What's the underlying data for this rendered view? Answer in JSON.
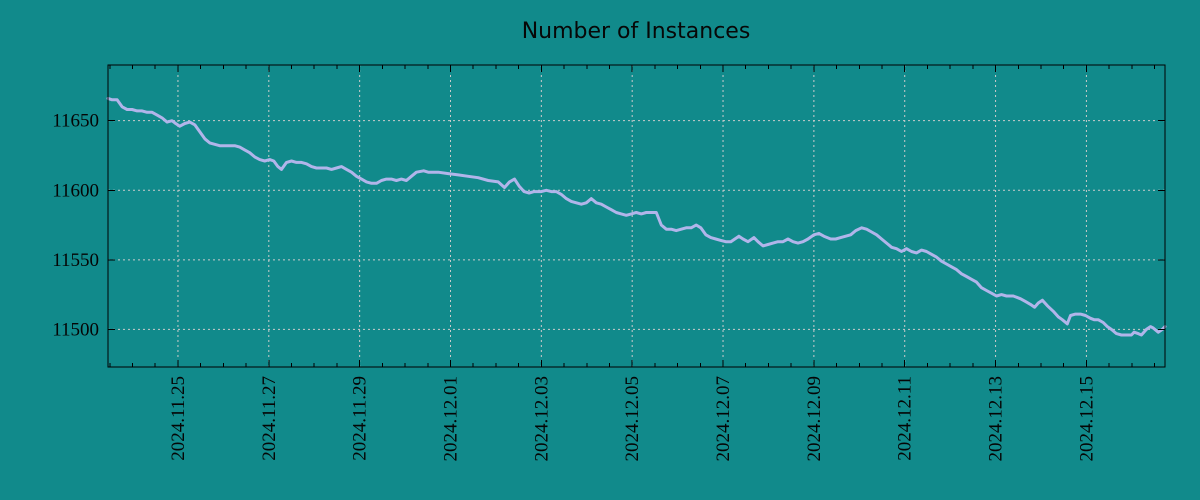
{
  "colors": {
    "background": "#118a8b",
    "line": "#b1b5ea",
    "grid": "#cccccc",
    "axis": "#000000",
    "text": "#070707"
  },
  "chart_data": {
    "type": "line",
    "title": "Number of Instances",
    "xlabel": "",
    "ylabel": "",
    "legend": "none",
    "grid": "dotted gridlines at labeled major ticks, ticks mirrored on all four borders",
    "x_axis": {
      "kind": "datetime",
      "unit_note": "day 0 = left plot edge (~1.5 days before 2024.11.25); labels every 2 days, minor ticks every 0.5 day",
      "range_days": [
        0,
        23.27
      ],
      "minor_tick_start_day": 0.04,
      "minor_tick_step_days": 0.5,
      "major_ticks": [
        {
          "label": "2024.11.25",
          "day": 1.54
        },
        {
          "label": "2024.11.27",
          "day": 3.54
        },
        {
          "label": "2024.11.29",
          "day": 5.54
        },
        {
          "label": "2024.12.01",
          "day": 7.54
        },
        {
          "label": "2024.12.03",
          "day": 9.54
        },
        {
          "label": "2024.12.05",
          "day": 11.54
        },
        {
          "label": "2024.12.07",
          "day": 13.54
        },
        {
          "label": "2024.12.09",
          "day": 15.54
        },
        {
          "label": "2024.12.11",
          "day": 17.54
        },
        {
          "label": "2024.12.13",
          "day": 19.54
        },
        {
          "label": "2024.12.15",
          "day": 21.54
        }
      ]
    },
    "y_axis": {
      "range": [
        11473,
        11690
      ],
      "major_ticks": [
        11500,
        11550,
        11600,
        11650
      ]
    },
    "series": [
      {
        "name": "Number of Instances",
        "points_day_value": [
          [
            0,
            11666
          ],
          [
            0.09,
            11665
          ],
          [
            0.2,
            11665
          ],
          [
            0.31,
            11660
          ],
          [
            0.42,
            11658
          ],
          [
            0.53,
            11658
          ],
          [
            0.64,
            11657
          ],
          [
            0.75,
            11657
          ],
          [
            0.86,
            11656
          ],
          [
            0.97,
            11656
          ],
          [
            1.08,
            11654
          ],
          [
            1.19,
            11652
          ],
          [
            1.3,
            11649
          ],
          [
            1.41,
            11650
          ],
          [
            1.49,
            11648
          ],
          [
            1.58,
            11646
          ],
          [
            1.69,
            11648
          ],
          [
            1.8,
            11649
          ],
          [
            1.91,
            11647
          ],
          [
            2.02,
            11642
          ],
          [
            2.13,
            11637
          ],
          [
            2.24,
            11634
          ],
          [
            2.35,
            11633
          ],
          [
            2.46,
            11632
          ],
          [
            2.57,
            11632
          ],
          [
            2.68,
            11632
          ],
          [
            2.79,
            11632
          ],
          [
            2.9,
            11631
          ],
          [
            3.01,
            11629
          ],
          [
            3.12,
            11627
          ],
          [
            3.23,
            11624
          ],
          [
            3.34,
            11622
          ],
          [
            3.45,
            11621
          ],
          [
            3.56,
            11622
          ],
          [
            3.65,
            11621
          ],
          [
            3.74,
            11617
          ],
          [
            3.82,
            11615
          ],
          [
            3.93,
            11620
          ],
          [
            4.04,
            11621
          ],
          [
            4.15,
            11620
          ],
          [
            4.26,
            11620
          ],
          [
            4.37,
            11619
          ],
          [
            4.48,
            11617
          ],
          [
            4.59,
            11616
          ],
          [
            4.7,
            11616
          ],
          [
            4.81,
            11616
          ],
          [
            4.92,
            11615
          ],
          [
            5.03,
            11616
          ],
          [
            5.14,
            11617
          ],
          [
            5.25,
            11615
          ],
          [
            5.36,
            11613
          ],
          [
            5.47,
            11610
          ],
          [
            5.58,
            11608
          ],
          [
            5.69,
            11606
          ],
          [
            5.8,
            11605
          ],
          [
            5.91,
            11605
          ],
          [
            6.02,
            11607
          ],
          [
            6.13,
            11608
          ],
          [
            6.24,
            11608
          ],
          [
            6.35,
            11607
          ],
          [
            6.46,
            11608
          ],
          [
            6.57,
            11607
          ],
          [
            6.68,
            11610
          ],
          [
            6.79,
            11613
          ],
          [
            6.95,
            11614
          ],
          [
            7.05,
            11613
          ],
          [
            7.27,
            11613
          ],
          [
            7.49,
            11612
          ],
          [
            7.71,
            11611
          ],
          [
            7.93,
            11610
          ],
          [
            8.15,
            11609
          ],
          [
            8.37,
            11607
          ],
          [
            8.59,
            11606
          ],
          [
            8.73,
            11602
          ],
          [
            8.84,
            11606
          ],
          [
            8.95,
            11608
          ],
          [
            9.05,
            11603
          ],
          [
            9.16,
            11599
          ],
          [
            9.27,
            11598
          ],
          [
            9.38,
            11599
          ],
          [
            9.54,
            11599
          ],
          [
            9.65,
            11600
          ],
          [
            9.76,
            11599
          ],
          [
            9.87,
            11599
          ],
          [
            9.98,
            11597
          ],
          [
            10.09,
            11594
          ],
          [
            10.2,
            11592
          ],
          [
            10.31,
            11591
          ],
          [
            10.42,
            11590
          ],
          [
            10.53,
            11591
          ],
          [
            10.64,
            11594
          ],
          [
            10.75,
            11591
          ],
          [
            10.86,
            11590
          ],
          [
            10.97,
            11588
          ],
          [
            11.08,
            11586
          ],
          [
            11.19,
            11584
          ],
          [
            11.3,
            11583
          ],
          [
            11.41,
            11582
          ],
          [
            11.52,
            11583
          ],
          [
            11.63,
            11584
          ],
          [
            11.74,
            11583
          ],
          [
            11.85,
            11584
          ],
          [
            11.96,
            11584
          ],
          [
            12.07,
            11584
          ],
          [
            12.18,
            11575
          ],
          [
            12.29,
            11572
          ],
          [
            12.4,
            11572
          ],
          [
            12.51,
            11571
          ],
          [
            12.62,
            11572
          ],
          [
            12.73,
            11573
          ],
          [
            12.84,
            11573
          ],
          [
            12.95,
            11575
          ],
          [
            13.05,
            11573
          ],
          [
            13.16,
            11568
          ],
          [
            13.27,
            11566
          ],
          [
            13.38,
            11565
          ],
          [
            13.49,
            11564
          ],
          [
            13.6,
            11563
          ],
          [
            13.71,
            11563
          ],
          [
            13.89,
            11567
          ],
          [
            13.98,
            11565
          ],
          [
            14.09,
            11563
          ],
          [
            14.22,
            11566
          ],
          [
            14.31,
            11563
          ],
          [
            14.42,
            11560
          ],
          [
            14.53,
            11561
          ],
          [
            14.64,
            11562
          ],
          [
            14.75,
            11563
          ],
          [
            14.86,
            11563
          ],
          [
            14.97,
            11565
          ],
          [
            15.08,
            11563
          ],
          [
            15.19,
            11562
          ],
          [
            15.3,
            11563
          ],
          [
            15.41,
            11565
          ],
          [
            15.54,
            11568
          ],
          [
            15.65,
            11569
          ],
          [
            15.76,
            11567
          ],
          [
            15.91,
            11565
          ],
          [
            16.02,
            11565
          ],
          [
            16.13,
            11566
          ],
          [
            16.24,
            11567
          ],
          [
            16.35,
            11568
          ],
          [
            16.46,
            11571
          ],
          [
            16.59,
            11573
          ],
          [
            16.7,
            11572
          ],
          [
            16.81,
            11570
          ],
          [
            16.92,
            11568
          ],
          [
            17.03,
            11565
          ],
          [
            17.14,
            11562
          ],
          [
            17.25,
            11559
          ],
          [
            17.36,
            11558
          ],
          [
            17.47,
            11556
          ],
          [
            17.58,
            11558
          ],
          [
            17.69,
            11556
          ],
          [
            17.8,
            11555
          ],
          [
            17.91,
            11557
          ],
          [
            18.02,
            11556
          ],
          [
            18.13,
            11554
          ],
          [
            18.24,
            11552
          ],
          [
            18.35,
            11549
          ],
          [
            18.46,
            11547
          ],
          [
            18.57,
            11545
          ],
          [
            18.68,
            11543
          ],
          [
            18.79,
            11540
          ],
          [
            18.9,
            11538
          ],
          [
            19.01,
            11536
          ],
          [
            19.12,
            11534
          ],
          [
            19.23,
            11530
          ],
          [
            19.34,
            11528
          ],
          [
            19.45,
            11526
          ],
          [
            19.56,
            11524
          ],
          [
            19.67,
            11525
          ],
          [
            19.78,
            11524
          ],
          [
            19.93,
            11524
          ],
          [
            20.09,
            11522
          ],
          [
            20.2,
            11520
          ],
          [
            20.31,
            11518
          ],
          [
            20.4,
            11516
          ],
          [
            20.48,
            11519
          ],
          [
            20.57,
            11521
          ],
          [
            20.68,
            11517
          ],
          [
            20.81,
            11513
          ],
          [
            20.92,
            11509
          ],
          [
            21.01,
            11507
          ],
          [
            21.12,
            11504
          ],
          [
            21.19,
            11510
          ],
          [
            21.3,
            11511
          ],
          [
            21.41,
            11511
          ],
          [
            21.52,
            11510
          ],
          [
            21.63,
            11508
          ],
          [
            21.71,
            11507
          ],
          [
            21.8,
            11507
          ],
          [
            21.91,
            11505
          ],
          [
            22.0,
            11502
          ],
          [
            22.09,
            11500
          ],
          [
            22.2,
            11497
          ],
          [
            22.31,
            11496
          ],
          [
            22.42,
            11496
          ],
          [
            22.53,
            11496
          ],
          [
            22.59,
            11498
          ],
          [
            22.68,
            11497
          ],
          [
            22.75,
            11496
          ],
          [
            22.86,
            11500
          ],
          [
            22.95,
            11502
          ],
          [
            23.01,
            11501
          ],
          [
            23.12,
            11498
          ],
          [
            23.21,
            11500
          ],
          [
            23.27,
            11502
          ]
        ]
      }
    ]
  }
}
